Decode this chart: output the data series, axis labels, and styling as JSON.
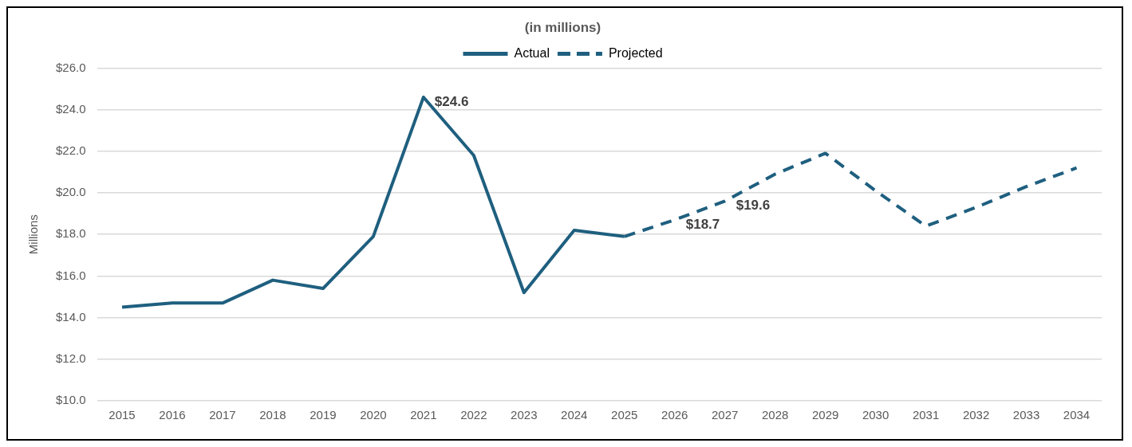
{
  "chart_data": {
    "type": "line",
    "title": "(in millions)",
    "ylabel": "Millions",
    "categories": [
      "2015",
      "2016",
      "2017",
      "2018",
      "2019",
      "2020",
      "2021",
      "2022",
      "2023",
      "2024",
      "2025",
      "2026",
      "2027",
      "2028",
      "2029",
      "2030",
      "2031",
      "2032",
      "2033",
      "2034"
    ],
    "series": [
      {
        "name": "Actual",
        "color": "#1f5f7f",
        "line_style": "solid",
        "values": [
          14.5,
          14.7,
          14.7,
          15.8,
          15.4,
          17.9,
          24.6,
          21.8,
          15.2,
          18.2,
          17.9,
          null,
          null,
          null,
          null,
          null,
          null,
          null,
          null,
          null
        ],
        "value_labels": [
          null,
          null,
          null,
          null,
          null,
          null,
          "$24.6",
          null,
          null,
          null,
          null,
          null,
          null,
          null,
          null,
          null,
          null,
          null,
          null,
          null
        ]
      },
      {
        "name": "Projected",
        "color": "#1f5f7f",
        "line_style": "dashed",
        "values": [
          null,
          null,
          null,
          null,
          null,
          null,
          null,
          null,
          null,
          null,
          17.9,
          18.7,
          19.6,
          20.9,
          21.9,
          20.1,
          18.4,
          19.3,
          20.3,
          21.2
        ],
        "value_labels": [
          null,
          null,
          null,
          null,
          null,
          null,
          null,
          null,
          null,
          null,
          null,
          "$18.7",
          "$19.6",
          null,
          null,
          null,
          null,
          null,
          null,
          null
        ]
      }
    ],
    "ylim": [
      10,
      26
    ],
    "yticks": [
      {
        "value": 10,
        "label": "$10.0"
      },
      {
        "value": 12,
        "label": "$12.0"
      },
      {
        "value": 14,
        "label": "$14.0"
      },
      {
        "value": 16,
        "label": "$16.0"
      },
      {
        "value": 18,
        "label": "$18.0"
      },
      {
        "value": 20,
        "label": "$20.0"
      },
      {
        "value": 22,
        "label": "$22.0"
      },
      {
        "value": 24,
        "label": "$24.0"
      },
      {
        "value": 26,
        "label": "$26.0"
      }
    ],
    "grid": "y",
    "legend": "top",
    "marker": "none"
  }
}
